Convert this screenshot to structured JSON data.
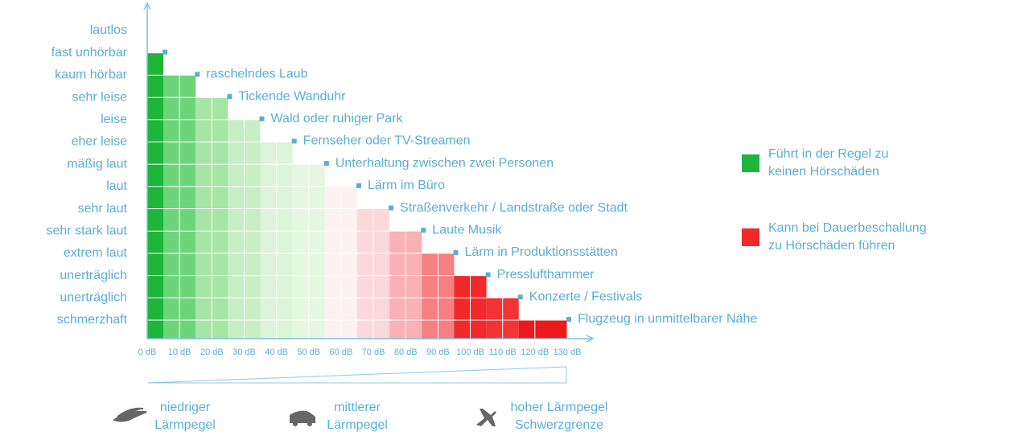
{
  "chart_data": {
    "type": "bar",
    "categories": [
      null,
      "raschelndes Laub",
      "Tickende Wanduhr",
      "Wald oder ruhiger Park",
      "Fernseher oder TV-Streamen",
      "Unterhaltung zwischen zwei Personen",
      "Lärm im Büro",
      "Straßenverkehr / Landstraße oder Stadt",
      "Laute Musik",
      "Lärm in Produktionsstätten",
      "Presslufthammer",
      "Konzerte / Festivals",
      "Flugzeug in unmittelbarer Nähe"
    ],
    "bins": [
      0,
      5,
      15,
      25,
      35,
      45,
      55,
      65,
      75,
      85,
      95,
      105,
      115,
      130
    ],
    "values": [
      13,
      12,
      11,
      10,
      9,
      8,
      7,
      6,
      5,
      4,
      3,
      2,
      1
    ],
    "colors": [
      "#1db53a",
      "#6ed47a",
      "#a6e5a6",
      "#c8eec6",
      "#dcf4d9",
      "#e5f7e0",
      "#fdf1f1",
      "#fbd9db",
      "#f8b1b4",
      "#f67f82",
      "#f0292b",
      "#f23434",
      "#ec1b1b"
    ],
    "xlim": [
      0,
      130
    ],
    "xticks": [
      {
        "value": 0,
        "label": "0 dB"
      },
      {
        "value": 10,
        "label": "10 dB"
      },
      {
        "value": 20,
        "label": "20 dB"
      },
      {
        "value": 30,
        "label": "30 dB"
      },
      {
        "value": 40,
        "label": "40 dB"
      },
      {
        "value": 50,
        "label": "50 dB"
      },
      {
        "value": 60,
        "label": "60 dB"
      },
      {
        "value": 70,
        "label": "70 dB"
      },
      {
        "value": 80,
        "label": "80 dB"
      },
      {
        "value": 90,
        "label": "90 dB"
      },
      {
        "value": 100,
        "label": "100 dB"
      },
      {
        "value": 110,
        "label": "110 dB"
      },
      {
        "value": 120,
        "label": "120 dB"
      },
      {
        "value": 130,
        "label": "130 dB"
      }
    ],
    "ylim": [
      0,
      14
    ],
    "yticks": [
      {
        "value": 1,
        "label": "schmerzhaft"
      },
      {
        "value": 2,
        "label": "unerträglich"
      },
      {
        "value": 3,
        "label": "unerträglich"
      },
      {
        "value": 4,
        "label": "extrem laut"
      },
      {
        "value": 5,
        "label": "sehr stark laut"
      },
      {
        "value": 6,
        "label": "sehr laut"
      },
      {
        "value": 7,
        "label": "laut"
      },
      {
        "value": 8,
        "label": "mäßig laut"
      },
      {
        "value": 9,
        "label": "eher leise"
      },
      {
        "value": 10,
        "label": "leise"
      },
      {
        "value": 11,
        "label": "sehr leise"
      },
      {
        "value": 12,
        "label": "kaum hörbar"
      },
      {
        "value": 13,
        "label": "fast unhörbar"
      },
      {
        "value": 14,
        "label": "lautlos"
      }
    ],
    "grid": true,
    "legend": [
      {
        "lines": [
          "Führt in der Regel zu",
          "keinen Hörschäden"
        ],
        "color": "#1db53a"
      },
      {
        "lines": [
          "Kann bei Dauerbeschallung",
          "zu Hörschäden führen"
        ],
        "color": "#f0292b"
      }
    ],
    "scale_labels": [
      [
        "niedriger",
        "Lärmpegel"
      ],
      [
        "mittlerer",
        "Lärmpegel"
      ],
      [
        "hoher Lärmpegel",
        "Schwerzgrenze"
      ]
    ]
  }
}
